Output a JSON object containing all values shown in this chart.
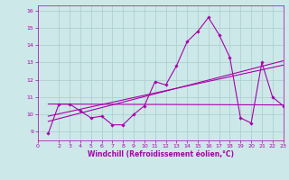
{
  "background_color": "#cce8e8",
  "grid_color": "#aacccc",
  "line_color": "#aa00aa",
  "xlim": [
    0,
    23
  ],
  "ylim": [
    8.5,
    16.3
  ],
  "xticks": [
    0,
    2,
    3,
    4,
    5,
    6,
    7,
    8,
    9,
    10,
    11,
    12,
    13,
    14,
    15,
    16,
    17,
    18,
    19,
    20,
    21,
    22,
    23
  ],
  "yticks": [
    9,
    10,
    11,
    12,
    13,
    14,
    15,
    16
  ],
  "xlabel": "Windchill (Refroidissement éolien,°C)",
  "series1_x": [
    1,
    2,
    3,
    4,
    5,
    6,
    7,
    8,
    9,
    10,
    11,
    12,
    13,
    14,
    15,
    16,
    17,
    18,
    19,
    20,
    21,
    22,
    23
  ],
  "series1_y": [
    8.9,
    10.6,
    10.6,
    10.2,
    9.8,
    9.9,
    9.4,
    9.4,
    10.0,
    10.5,
    11.9,
    11.7,
    12.8,
    14.2,
    14.8,
    15.6,
    14.6,
    13.3,
    9.8,
    9.5,
    13.0,
    11.0,
    10.5
  ],
  "flat_line_x": [
    1,
    23
  ],
  "flat_line_y": [
    10.6,
    10.55
  ],
  "trend1_x": [
    1,
    23
  ],
  "trend1_y": [
    9.6,
    13.1
  ],
  "trend2_x": [
    1,
    23
  ],
  "trend2_y": [
    9.9,
    12.85
  ],
  "tick_fontsize": 4.5,
  "xlabel_fontsize": 5.5,
  "marker_size": 1.8,
  "linewidth": 0.8
}
